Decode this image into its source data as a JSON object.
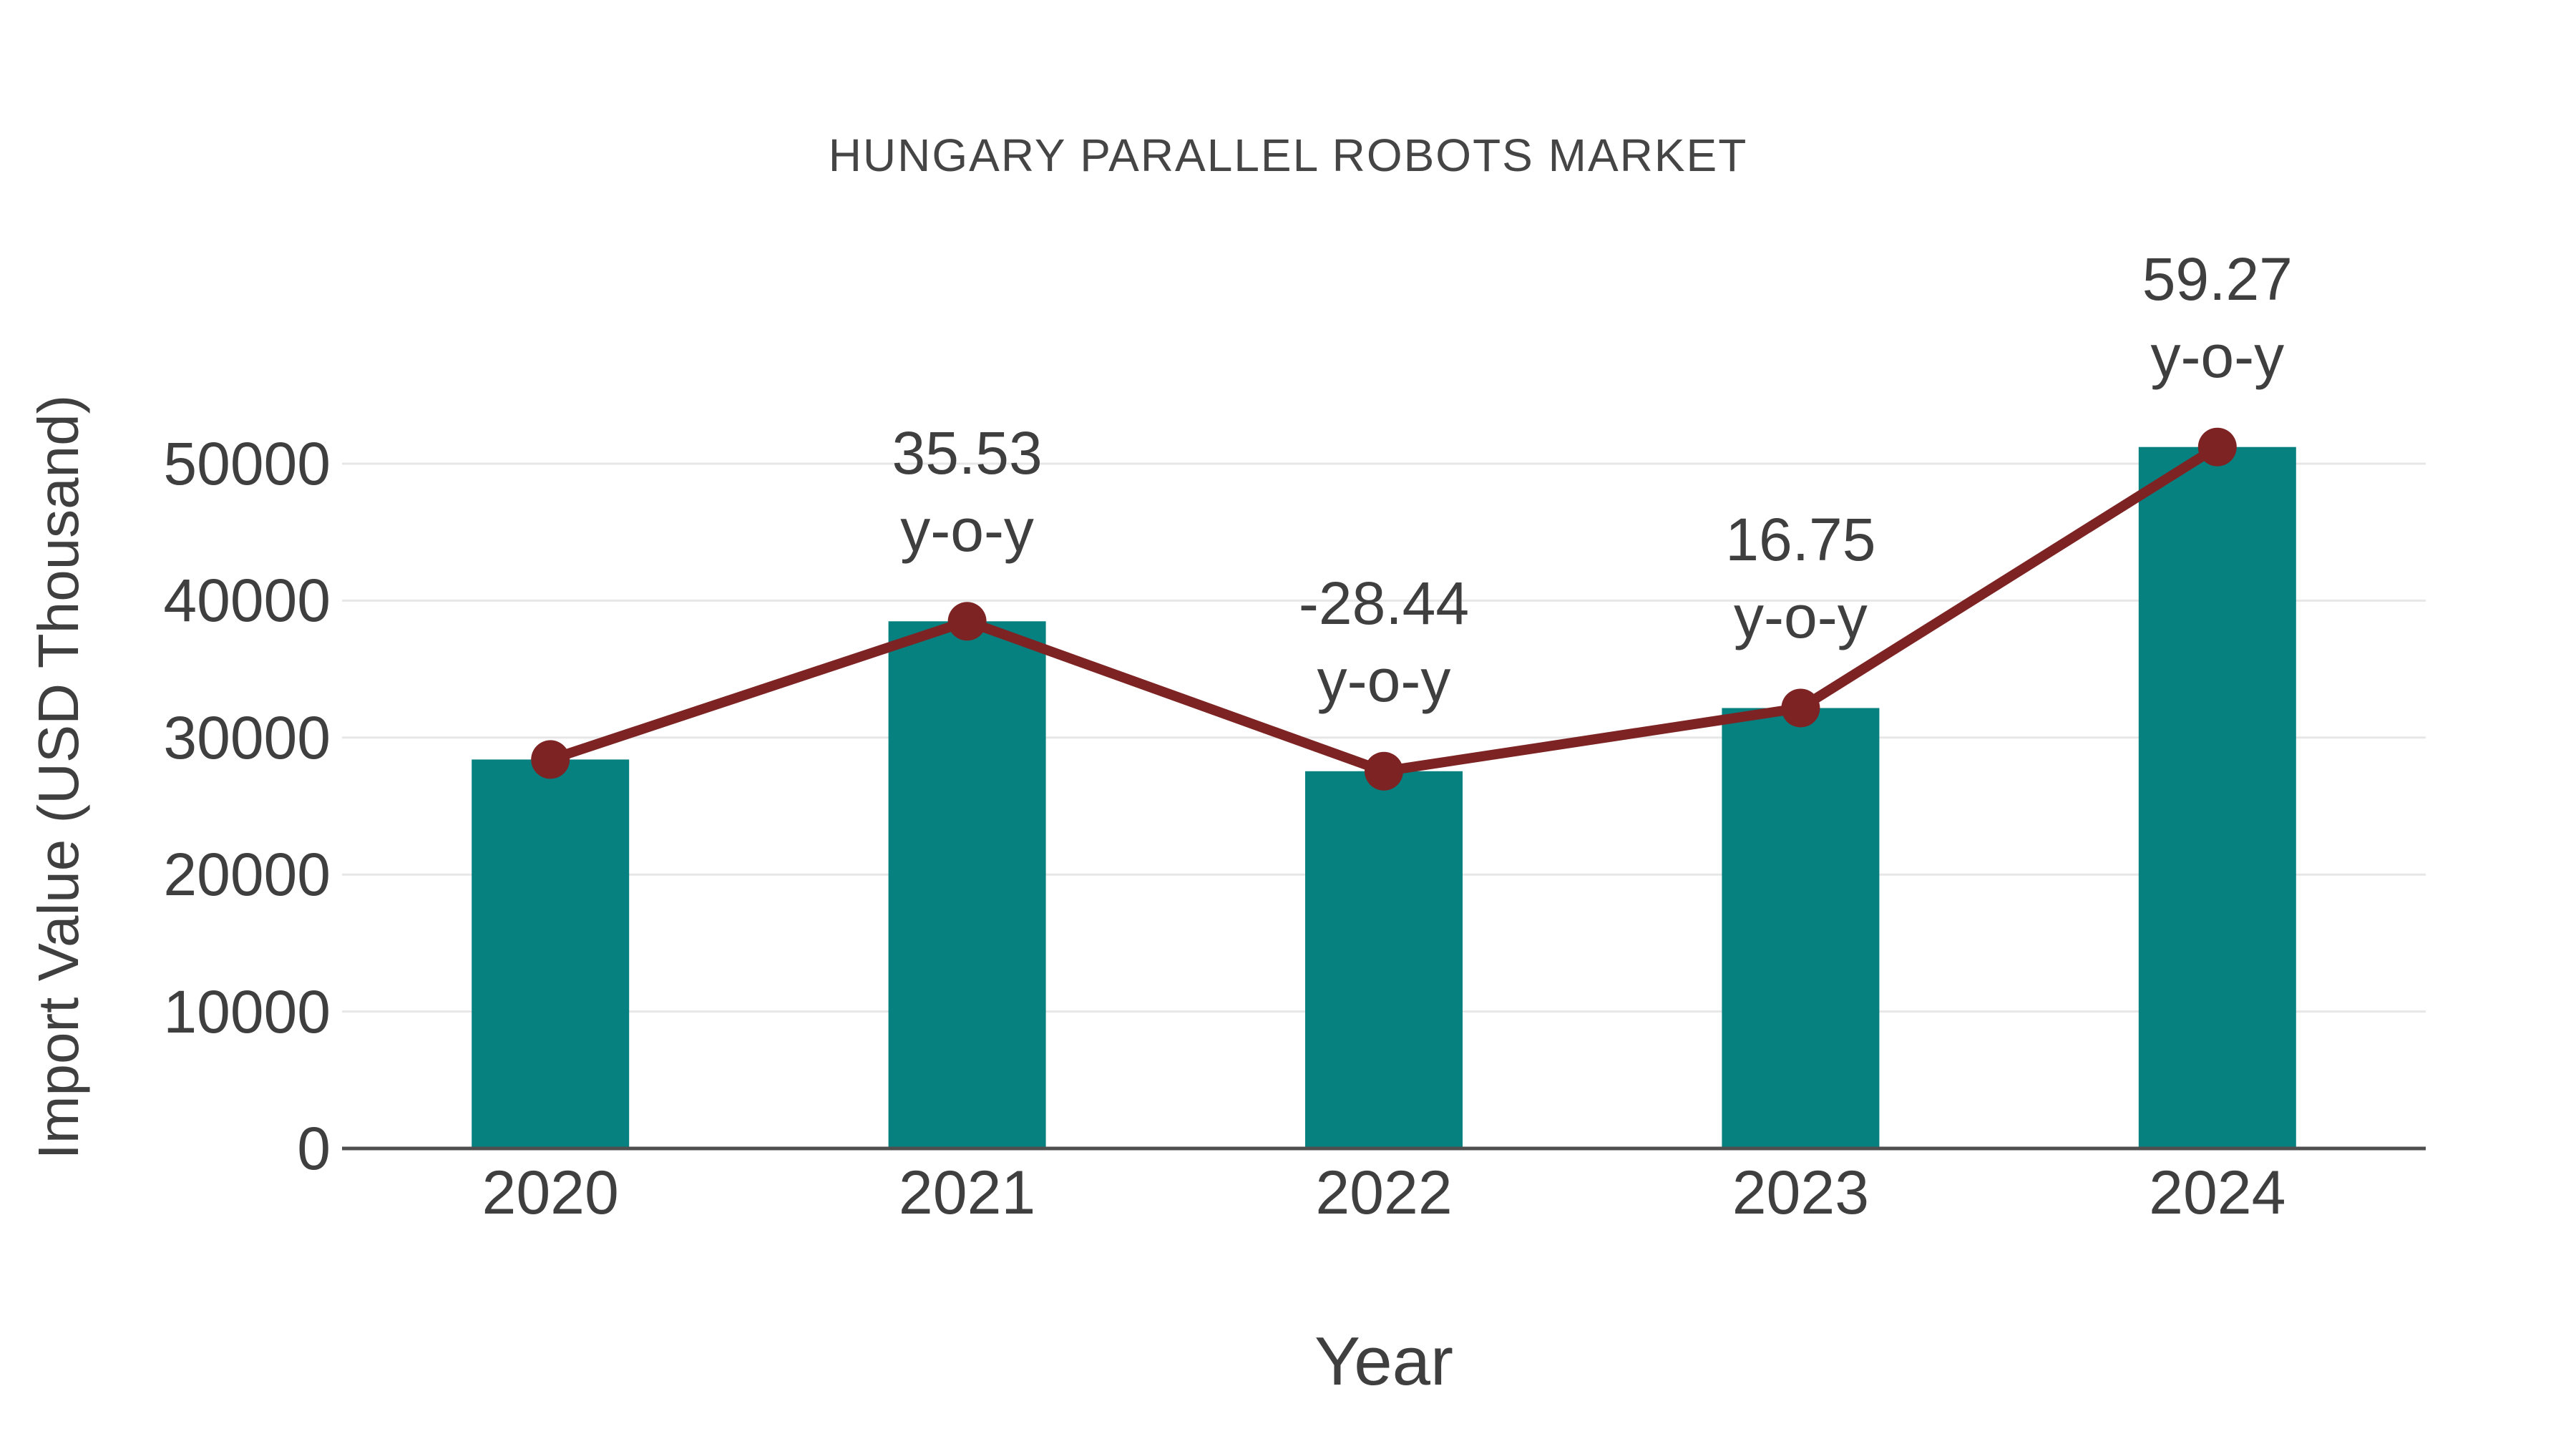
{
  "chart_data": {
    "type": "bar",
    "title": "HUNGARY PARALLEL ROBOTS MARKET",
    "xlabel": "Year",
    "ylabel": "Import Value (USD Thousand)",
    "categories": [
      "2020",
      "2021",
      "2022",
      "2023",
      "2024"
    ],
    "series": [
      {
        "name": "Import Value (USD Thousand)",
        "type": "bar",
        "color": "#078080",
        "values": [
          28400,
          38491,
          27545,
          32159,
          51218
        ]
      },
      {
        "name": "y-o-y change",
        "type": "line",
        "color": "#7d2323",
        "values": [
          28400,
          38491,
          27545,
          32159,
          51218
        ],
        "note": "line with round markers overlays the bar top values; markers are annotated with y-o-y percentage"
      }
    ],
    "yoy_percent": [
      null,
      35.53,
      -28.44,
      16.75,
      59.27
    ],
    "annotations": [
      {
        "category": "2021",
        "line1": "35.53",
        "line2": "y-o-y"
      },
      {
        "category": "2022",
        "line1": "-28.44",
        "line2": "y-o-y"
      },
      {
        "category": "2023",
        "line1": "16.75",
        "line2": "y-o-y"
      },
      {
        "category": "2024",
        "line1": "59.27",
        "line2": "y-o-y"
      }
    ],
    "yticks": [
      0,
      10000,
      20000,
      30000,
      40000,
      50000
    ],
    "ylim": [
      0,
      52000
    ],
    "grid": true,
    "legend": "none",
    "colors": {
      "bar": "#078080",
      "line": "#7d2323",
      "text": "#3f3f3f",
      "title": "#454545",
      "axis": "#4f4f4f",
      "gridline": "#e7e7e7",
      "background": "#ffffff"
    }
  }
}
